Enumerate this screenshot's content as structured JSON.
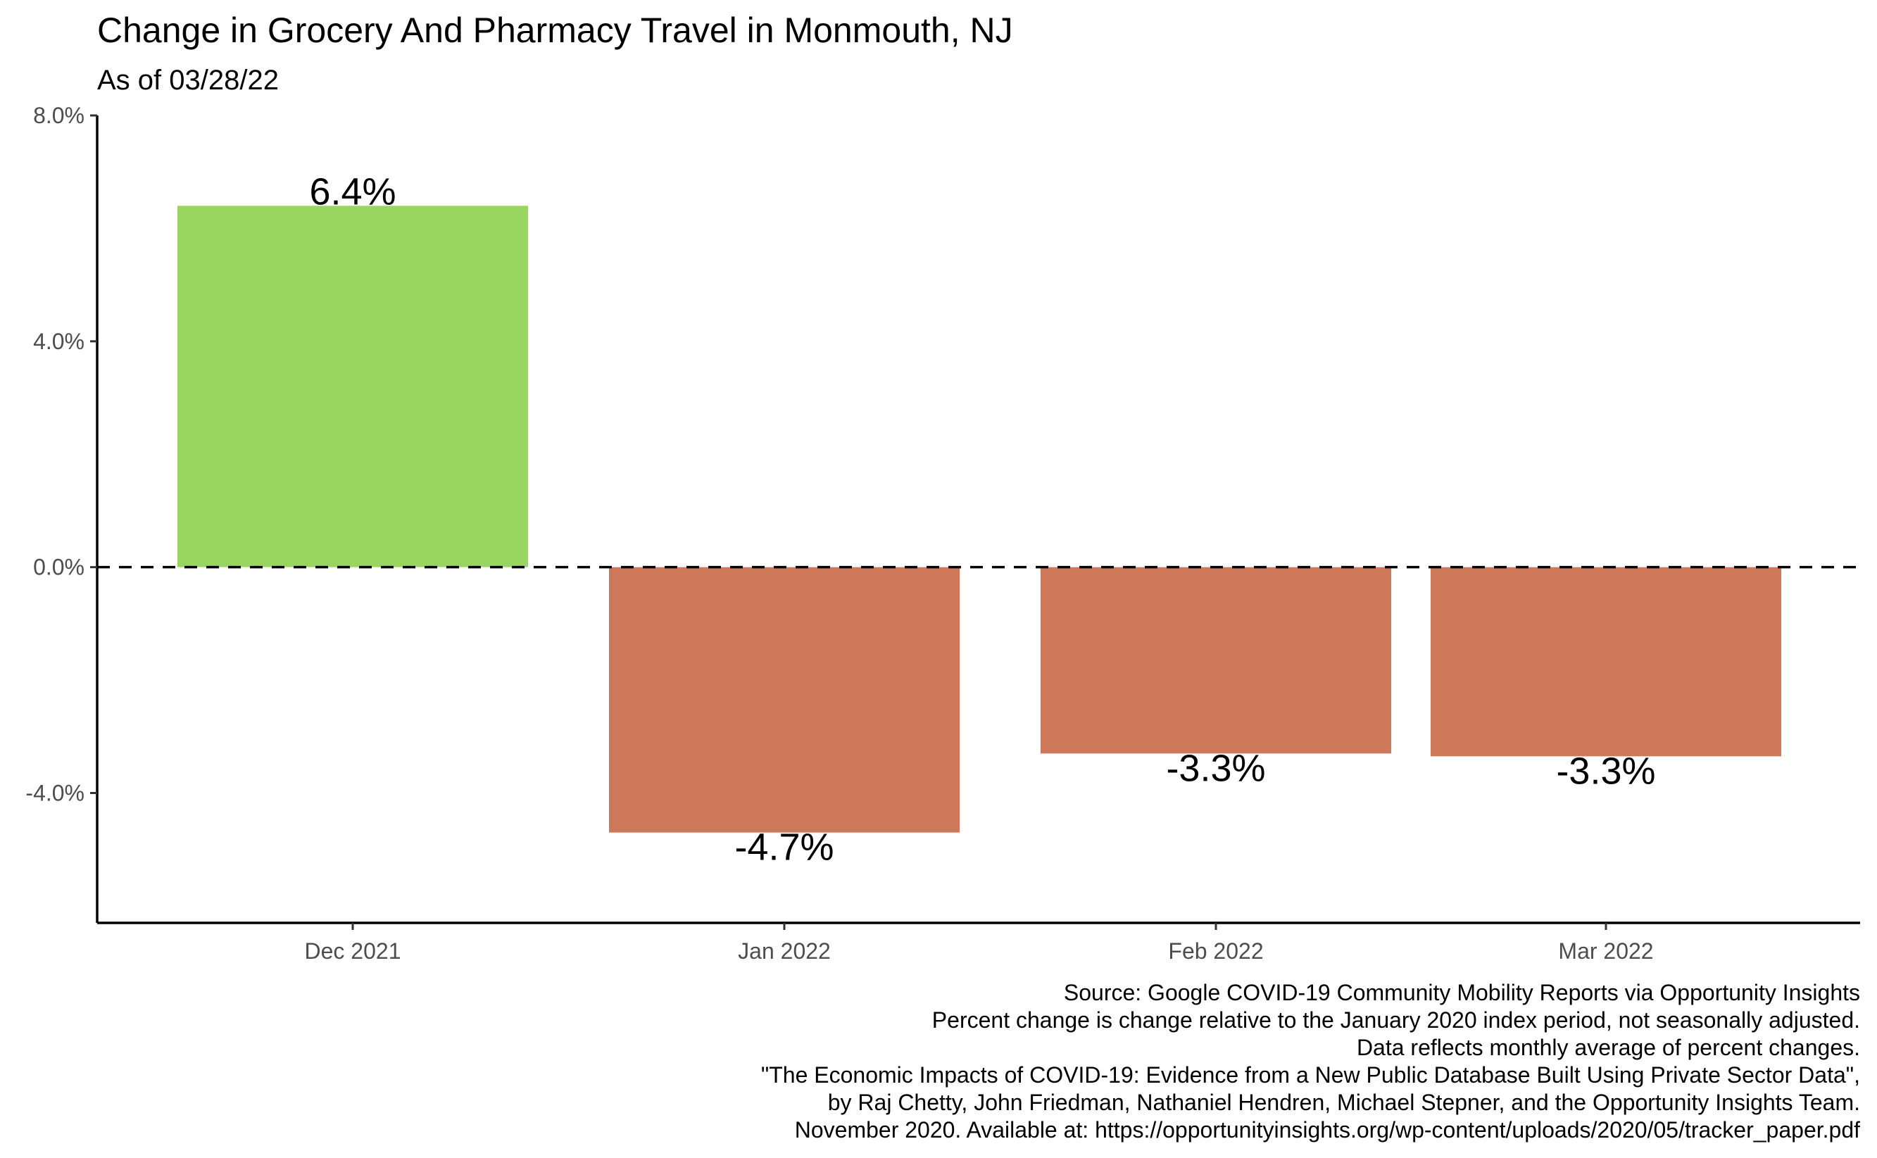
{
  "chart_data": {
    "type": "bar",
    "title": "Change in Grocery And Pharmacy Travel in Monmouth, NJ",
    "subtitle": "As of 03/28/22",
    "categories": [
      "Dec 2021",
      "Jan 2022",
      "Feb 2022",
      "Mar 2022"
    ],
    "values": [
      6.4,
      -4.7,
      -3.3,
      -3.35
    ],
    "data_labels": [
      "6.4%",
      "-4.7%",
      "-3.3%",
      "-3.3%"
    ],
    "ylim": [
      -6.3,
      8.0
    ],
    "y_ticks": [
      8.0,
      4.0,
      0.0,
      -4.0
    ],
    "y_tick_labels": [
      "8.0%",
      "4.0%",
      "0.0%",
      "-4.0%"
    ],
    "reference_line": {
      "value": 0,
      "style": "dashed"
    },
    "colors": {
      "positive": "#99d65f",
      "negative": "#cd7858"
    },
    "grid": false,
    "legend": "none"
  },
  "caption": [
    "Source: Google COVID-19 Community Mobility Reports via Opportunity Insights",
    "Percent change is change relative to the January 2020 index period, not seasonally adjusted.",
    "Data reflects monthly average of percent changes.",
    "\"The Economic Impacts of COVID-19: Evidence from a New Public Database Built Using Private Sector Data\",",
    "by Raj Chetty, John Friedman, Nathaniel Hendren, Michael Stepner, and the Opportunity Insights Team.",
    "November 2020. Available at: https://opportunityinsights.org/wp-content/uploads/2020/05/tracker_paper.pdf"
  ]
}
